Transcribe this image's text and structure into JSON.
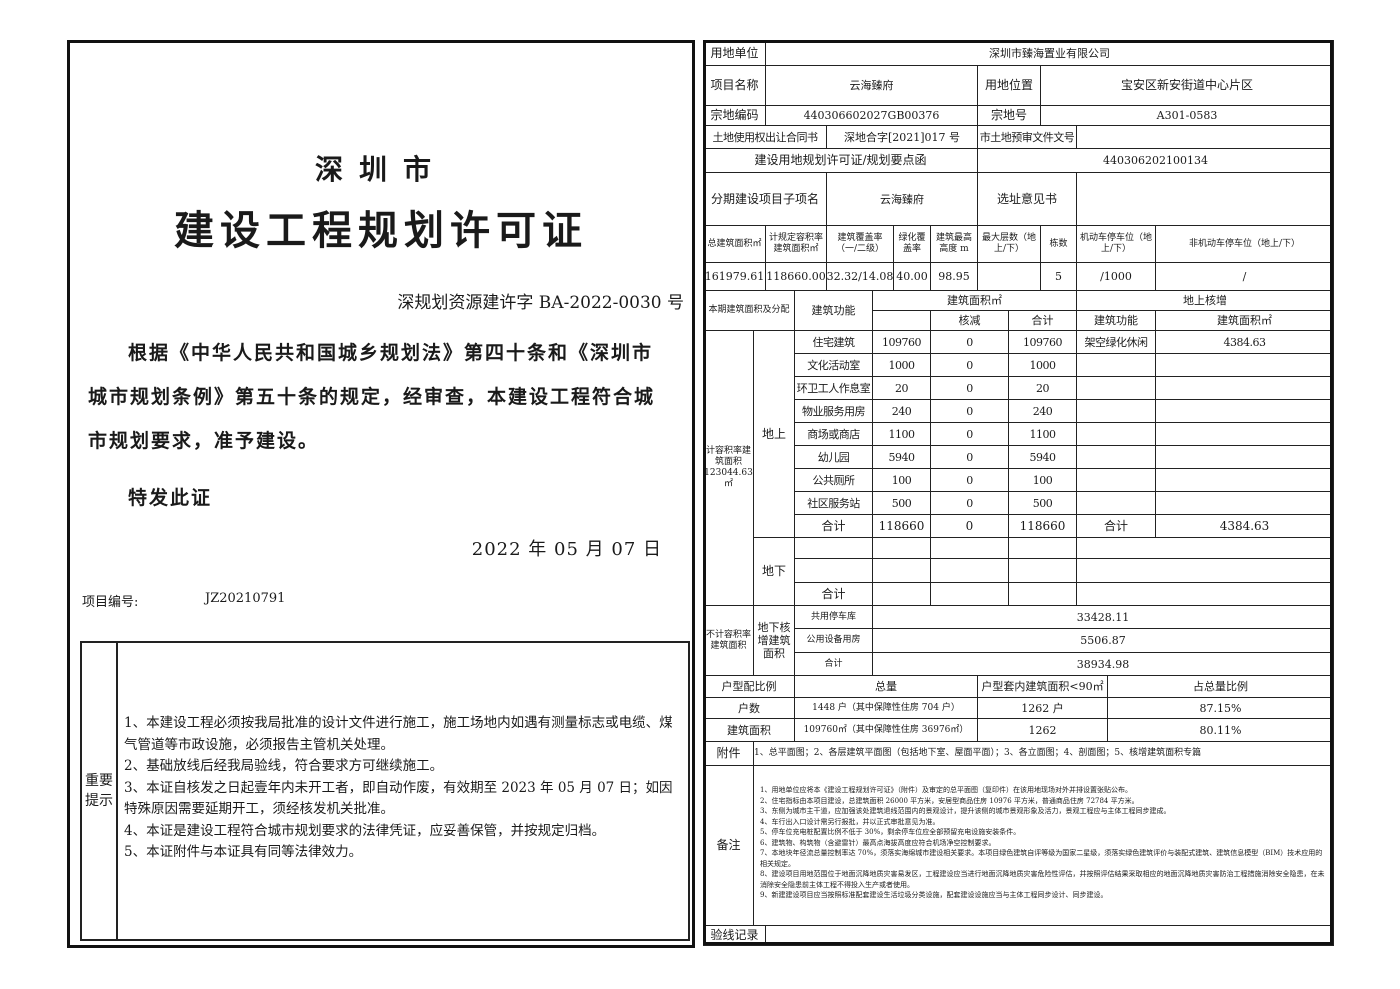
{
  "left": {
    "city": "深圳市",
    "title": "建设工程规划许可证",
    "permit_no": "深规划资源建许字 BA-2022-0030 号",
    "body": "根据《中华人民共和国城乡规划法》第四十条和《深圳市城市规划条例》第五十条的规定，经审查，本建设工程符合城市规划要求，准予建设。",
    "special": "特发此证",
    "date": "2022 年 05 月 07 日",
    "project_no_label": "项目编号:",
    "project_no": "JZ20210791",
    "notes_label": "重要提示",
    "notes": [
      "1、本建设工程必须按我局批准的设计文件进行施工，施工场地内如遇有测量标志或电缆、煤气管道等市政设施，必须报告主管机关处理。",
      "2、基础放线后经我局验线，符合要求方可继续施工。",
      "3、本证自核发之日起壹年内未开工者，即自动作废，有效期至 2023 年 05 月 07 日；如因特殊原因需要延期开工，须经核发机关批准。",
      "4、本证是建设工程符合城市规划要求的法律凭证，应妥善保管，并按规定归档。",
      "5、本证附件与本证具有同等法律效力。"
    ]
  },
  "right": {
    "land_user_label": "用地单位",
    "land_user": "深圳市臻海置业有限公司",
    "project_name_label": "项目名称",
    "project_name": "云海臻府",
    "location_label": "用地位置",
    "location": "宝安区新安街道中心片区",
    "parcel_code_label": "宗地编码",
    "parcel_code": "440306602027GB00376",
    "parcel_no_label": "宗地号",
    "parcel_no": "A301-0583",
    "contract_label": "土地使用权出让合同书",
    "contract_no": "深地合字[2021]017 号",
    "pre_review_label": "市土地预审文件文号",
    "pre_review_no": "",
    "planning_permit_label": "建设用地规划许可证/规划要点函",
    "planning_permit_no": "440306202100134",
    "phase_label": "分期建设项目子项名",
    "phase_name": "云海臻府",
    "site_opinion_label": "选址意见书",
    "site_opinion_no": "",
    "metrics_headers": [
      "总建筑面积㎡",
      "计规定容积率建筑面积㎡",
      "建筑覆盖率（一/二级）",
      "绿化覆盖率",
      "建筑最高高度 m",
      "最大层数（地上/下）",
      "栋数",
      "机动车停车位（地上/下）",
      "非机动车停车位（地上/下）"
    ],
    "metrics_values": [
      "161979.61",
      "118660.00",
      "32.32/14.08",
      "40.00",
      "98.95",
      "",
      "5",
      "/1000",
      "/"
    ],
    "alloc": {
      "title": "本期建筑面积及分配",
      "func_header": "建筑功能",
      "area_header": "建筑面积㎡",
      "sub_headers": [
        "",
        "核减",
        "合计"
      ],
      "increase_header": "地上核增",
      "inc_func_header": "建筑功能",
      "inc_area_header": "建筑面积㎡",
      "far_label": "计容积率建筑面积 123044.63㎡",
      "above_label": "地上",
      "below_label": "地下",
      "rows": [
        [
          "住宅建筑",
          "109760",
          "0",
          "109760",
          "架空绿化休闲",
          "4384.63"
        ],
        [
          "文化活动室",
          "1000",
          "0",
          "1000",
          "",
          ""
        ],
        [
          "环卫工人作息室",
          "20",
          "0",
          "20",
          "",
          ""
        ],
        [
          "物业服务用房",
          "240",
          "0",
          "240",
          "",
          ""
        ],
        [
          "商场或商店",
          "1100",
          "0",
          "1100",
          "",
          ""
        ],
        [
          "幼儿园",
          "5940",
          "0",
          "5940",
          "",
          ""
        ],
        [
          "公共厕所",
          "100",
          "0",
          "100",
          "",
          ""
        ],
        [
          "社区服务站",
          "500",
          "0",
          "500",
          "",
          ""
        ]
      ],
      "above_total": [
        "合计",
        "118660",
        "0",
        "118660",
        "合计",
        "4384.63"
      ],
      "below_total_label": "合计"
    },
    "non_far": {
      "label": "不计容积率建筑面积",
      "sub_label": "地下核增建筑面积",
      "rows": [
        [
          "共用停车库",
          "33428.11"
        ],
        [
          "公用设备用房",
          "5506.87"
        ],
        [
          "合计",
          "38934.98"
        ]
      ]
    },
    "unit_ratio": {
      "headers": [
        "户型配比例",
        "总量",
        "户型套内建筑面积<90㎡",
        "占总量比例"
      ],
      "rows": [
        [
          "户数",
          "1448 户（其中保障性住房 704 户）",
          "1262 户",
          "87.15%"
        ],
        [
          "建筑面积",
          "109760㎡（其中保障性住房 36976㎡）",
          "1262",
          "80.11%"
        ]
      ]
    },
    "attachments_label": "附件",
    "attachments": "1、总平面图；2、各层建筑平面图（包括地下室、屋面平面）；3、各立面图；4、剖面图；5、核增建筑面积专篇",
    "remarks_label": "备注",
    "remarks": [
      "1、用地单位应将本《建设工程规划许可证》（附件）及审定的总平面图（复印件）在该用地现场对外并排设置张贴公布。",
      "2、住宅指标由本项目建设，总建筑面积 26000 平方米，安居型商品住房 10976 平方米，普通商品住房 72784 平方米。",
      "3、东侧为城市主干道，应加强该处建筑退线范围内的景观设计，提升该侧的城市景观形象及活力，景观工程应与主体工程同步建成。",
      "4、车行出入口设计需另行报批，并以正式审批意见为准。",
      "5、停车位充电桩配置比例不低于 30%，剩余停车位应全部预留充电设施安装条件。",
      "6、建筑物、构筑物（含避雷针）最高点海拔高度应符合机场净空控制要求。",
      "7、本地块年径流总量控制率达 70%，须落实海绵城市建设相关要求。本项目绿色建筑自评等级为国家二星级，须落实绿色建筑评价与装配式建筑、建筑信息模型（BIM）技术应用的相关规定。",
      "8、建设项目用地范围位于地面沉降地质灾害易发区，工程建设应当进行地面沉降地质灾害危险性评估，并按照评估结果采取相应的地面沉降地质灾害防治工程措施消除安全隐患，在未消除安全隐患前主体工程不得投入生产或者使用。",
      "9、新建建设项目应当按照标准配套建设生活垃圾分类设施，配套建设设施应当与主体工程同步设计、同步建设。"
    ],
    "inspection_label": "验线记录"
  }
}
